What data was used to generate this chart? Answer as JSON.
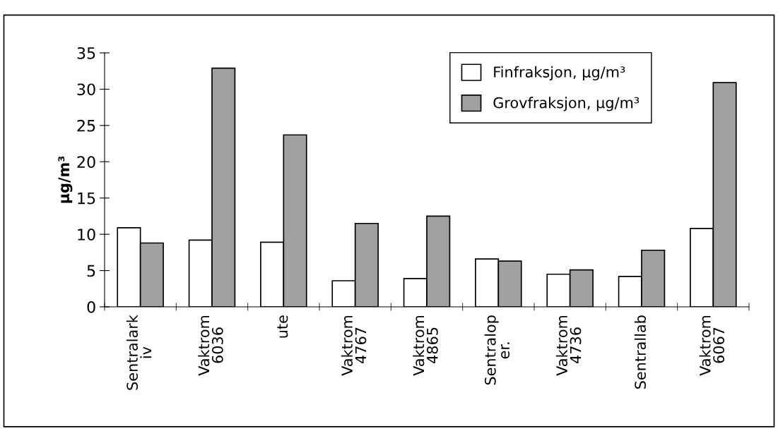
{
  "chart_data": {
    "type": "bar",
    "ylabel": "µg/m³",
    "categories": [
      "Sentralark\niv",
      "Vaktrom\n6036",
      "ute",
      "Vaktrom\n4767",
      "Vaktrom\n4865",
      "Sentralop\ner.",
      "Vaktrom\n4736",
      "Sentrallab",
      "Vaktrom\n6067"
    ],
    "series": [
      {
        "name": "Finfraksjon, µg/m³",
        "color": "#ffffff",
        "values": [
          10.9,
          9.2,
          8.9,
          3.6,
          3.9,
          6.6,
          4.5,
          4.2,
          10.8
        ]
      },
      {
        "name": "Grovfraksjon, µg/m³",
        "color": "#a0a0a0",
        "values": [
          8.8,
          32.9,
          23.7,
          11.5,
          12.5,
          6.3,
          5.1,
          7.8,
          30.9
        ]
      }
    ],
    "ylim": [
      0,
      35
    ],
    "yticks": [
      0,
      5,
      10,
      15,
      20,
      25,
      30,
      35
    ],
    "grid": false,
    "legend": "top right"
  }
}
